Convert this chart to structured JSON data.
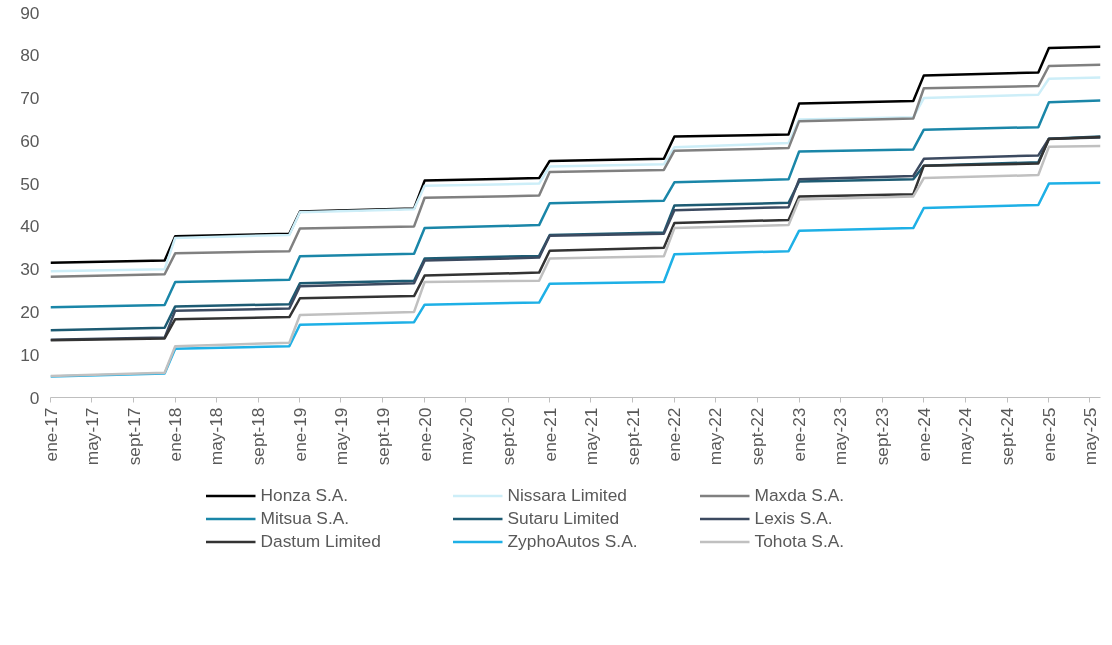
{
  "chart_data": {
    "type": "line",
    "x": [
      "2017-01",
      "2017-12",
      "2018-01",
      "2018-12",
      "2019-01",
      "2019-12",
      "2020-01",
      "2020-12",
      "2021-01",
      "2021-12",
      "2022-01",
      "2022-12",
      "2023-01",
      "2023-12",
      "2024-01",
      "2024-12",
      "2025-01",
      "2025-06"
    ],
    "series": [
      {
        "name": "Honza S.A.",
        "color": "#000000",
        "values": [
          31.5,
          32,
          37.7,
          38.3,
          43.5,
          44.2,
          50.7,
          51.3,
          55.3,
          55.8,
          61,
          61.5,
          68.7,
          69.3,
          75.3,
          76,
          81.7,
          82
        ]
      },
      {
        "name": "Nissara Limited",
        "color": "#cdeef8",
        "values": [
          29.5,
          30,
          37.3,
          38,
          43.3,
          44,
          49.5,
          50,
          54,
          54.5,
          58.5,
          59.5,
          65,
          65.5,
          70,
          70.8,
          74.5,
          74.8
        ]
      },
      {
        "name": "Maxda S.A.",
        "color": "#808080",
        "values": [
          28.2,
          28.8,
          33.7,
          34.2,
          39.5,
          40,
          46.7,
          47.2,
          52.7,
          53.2,
          57.7,
          58.3,
          64.6,
          65.2,
          72.3,
          72.8,
          77.5,
          77.8
        ]
      },
      {
        "name": "Mitsua S.A.",
        "color": "#1a86a8",
        "values": [
          21.1,
          21.6,
          27,
          27.5,
          33,
          33.6,
          39.6,
          40.3,
          45.4,
          46,
          50.3,
          51,
          57.5,
          58,
          62.6,
          63.2,
          69,
          69.4
        ]
      },
      {
        "name": "Sutaru Limited",
        "color": "#1d5b73",
        "values": [
          15.7,
          16.3,
          21.3,
          21.8,
          26.7,
          27.3,
          32.5,
          33.1,
          38,
          38.6,
          44.9,
          45.5,
          50.5,
          51,
          54.2,
          55,
          60.5,
          61
        ]
      },
      {
        "name": "Lexis S.A.",
        "color": "#3c4a60",
        "values": [
          13.5,
          14,
          20.3,
          20.8,
          26,
          26.7,
          32,
          32.7,
          37.8,
          38.3,
          43.8,
          44.5,
          51,
          51.8,
          55.8,
          56.6,
          60.5,
          60.8
        ]
      },
      {
        "name": "Dastum Limited",
        "color": "#333333",
        "values": [
          13.4,
          13.8,
          18.3,
          18.8,
          23.2,
          23.7,
          28.5,
          29.2,
          34.3,
          35,
          40.8,
          41.5,
          47,
          47.5,
          54.2,
          54.7,
          60.4,
          60.9
        ]
      },
      {
        "name": "ZyphoAutos S.A.",
        "color": "#1eb0e6",
        "values": [
          4.9,
          5.6,
          11.4,
          12,
          17,
          17.6,
          21.7,
          22.2,
          26.6,
          27,
          33.5,
          34.2,
          39,
          39.6,
          44.3,
          45,
          50,
          50.2
        ]
      },
      {
        "name": "Tohota S.A.",
        "color": "#c0c0c0",
        "values": [
          5,
          5.8,
          12,
          12.8,
          19.3,
          20,
          27,
          27.3,
          32.5,
          33,
          39.6,
          40.3,
          46.3,
          47,
          51.3,
          52,
          58.6,
          58.8
        ]
      }
    ],
    "xlim": [
      "2017-01",
      "2025-06"
    ],
    "xticks": [
      {
        "value": "2017-01",
        "label": "ene-17"
      },
      {
        "value": "2017-05",
        "label": "may-17"
      },
      {
        "value": "2017-09",
        "label": "sept-17"
      },
      {
        "value": "2018-01",
        "label": "ene-18"
      },
      {
        "value": "2018-05",
        "label": "may-18"
      },
      {
        "value": "2018-09",
        "label": "sept-18"
      },
      {
        "value": "2019-01",
        "label": "ene-19"
      },
      {
        "value": "2019-05",
        "label": "may-19"
      },
      {
        "value": "2019-09",
        "label": "sept-19"
      },
      {
        "value": "2020-01",
        "label": "ene-20"
      },
      {
        "value": "2020-05",
        "label": "may-20"
      },
      {
        "value": "2020-09",
        "label": "sept-20"
      },
      {
        "value": "2021-01",
        "label": "ene-21"
      },
      {
        "value": "2021-05",
        "label": "may-21"
      },
      {
        "value": "2021-09",
        "label": "sept-21"
      },
      {
        "value": "2022-01",
        "label": "ene-22"
      },
      {
        "value": "2022-05",
        "label": "may-22"
      },
      {
        "value": "2022-09",
        "label": "sept-22"
      },
      {
        "value": "2023-01",
        "label": "ene-23"
      },
      {
        "value": "2023-05",
        "label": "may-23"
      },
      {
        "value": "2023-09",
        "label": "sept-23"
      },
      {
        "value": "2024-01",
        "label": "ene-24"
      },
      {
        "value": "2024-05",
        "label": "may-24"
      },
      {
        "value": "2024-09",
        "label": "sept-24"
      },
      {
        "value": "2025-01",
        "label": "ene-25"
      },
      {
        "value": "2025-05",
        "label": "may-25"
      }
    ],
    "ylim": [
      0,
      90
    ],
    "yticks": [
      0,
      10,
      20,
      30,
      40,
      50,
      60,
      70,
      80,
      90
    ],
    "grid": false,
    "legend": "bottom",
    "marker": "none",
    "line_style": "solid"
  }
}
